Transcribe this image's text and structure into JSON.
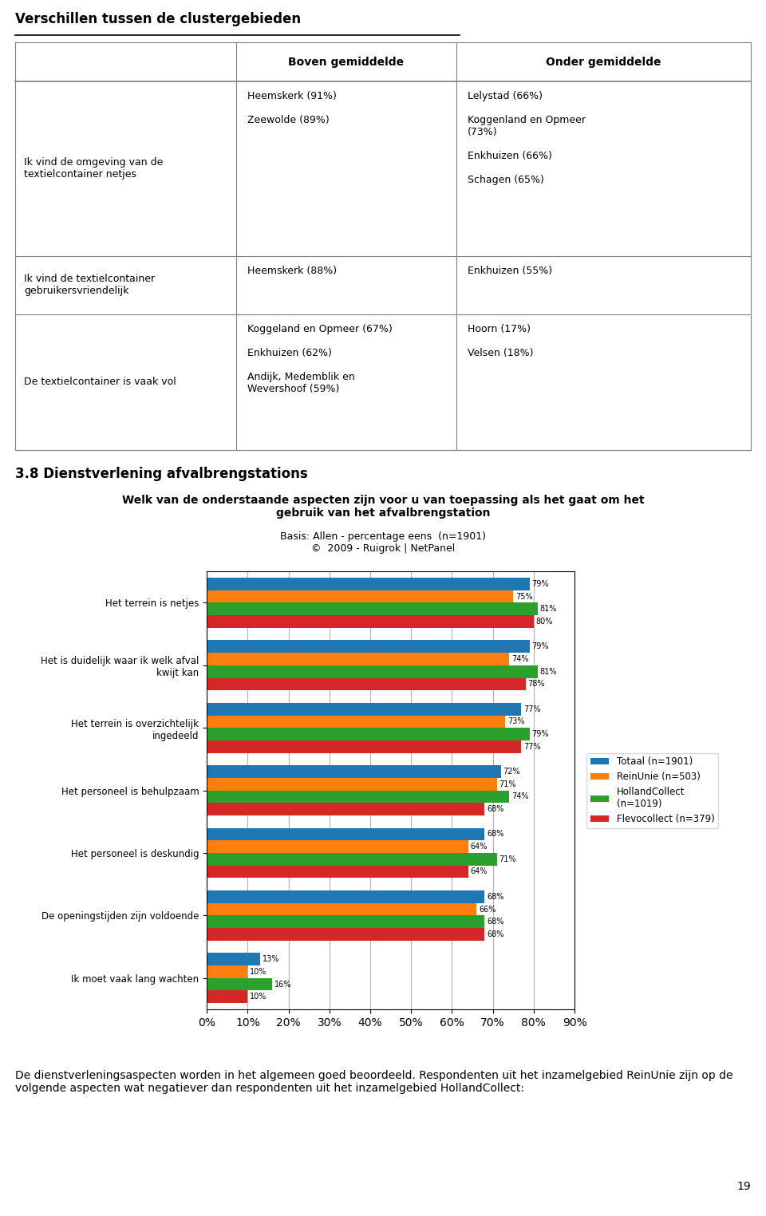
{
  "page_title": "Verschillen tussen de clustergebieden",
  "table": {
    "header": [
      "Boven gemiddelde",
      "Onder gemiddelde"
    ],
    "rows": [
      [
        "Ik vind de omgeving van de\ntextielcontainer netjes",
        "Heemskerk (91%)\n\nZeewolde (89%)",
        "Lelystad (66%)\n\nKoggenland en Opmeer\n(73%)\n\nEnkhuizen (66%)\n\nSchagen (65%)"
      ],
      [
        "Ik vind de textielcontainer\ngebruikersvriendelijk",
        "Heemskerk (88%)",
        "Enkhuizen (55%)"
      ],
      [
        "De textielcontainer is vaak vol",
        "Koggeland en Opmeer (67%)\n\nEnkhuizen (62%)\n\nAndijk, Medemblik en\nWevershoof (59%)",
        "Hoorn (17%)\n\nVelsen (18%)"
      ]
    ]
  },
  "section_title": "3.8 Dienstverlening afvalbrengstations",
  "chart_data": {
    "type": "bar",
    "orientation": "horizontal",
    "title": "Welk van de onderstaande aspecten zijn voor u van toepassing als het gaat om het\ngebruik van het afvalbrengstation",
    "subtitle": "Basis: Allen - percentage eens  (n=1901)\n©  2009 - Ruigrok | NetPanel",
    "categories": [
      "Het terrein is netjes",
      "Het is duidelijk waar ik welk afval\nkwijt kan",
      "Het terrein is overzichtelijk\ningedeeld",
      "Het personeel is behulpzaam",
      "Het personeel is deskundig",
      "De openingstijden zijn voldoende",
      "Ik moet vaak lang wachten"
    ],
    "series": [
      {
        "name": "Totaal (n=1901)",
        "values": [
          79,
          79,
          77,
          72,
          68,
          68,
          13
        ],
        "value_labels": [
          "79%",
          "79%",
          "77%",
          "72%",
          "68%",
          "68%",
          "13%"
        ]
      },
      {
        "name": "ReinUnie (n=503)",
        "values": [
          75,
          74,
          73,
          71,
          64,
          66,
          10
        ],
        "value_labels": [
          "75%",
          "74%",
          "73%",
          "71%",
          "64%",
          "66%",
          "10%"
        ]
      },
      {
        "name": "HollandCollect\n(n=1019)",
        "values": [
          81,
          81,
          79,
          74,
          71,
          68,
          16
        ],
        "value_labels": [
          "81%",
          "81%",
          "79%",
          "74%",
          "71%",
          "68%",
          "16%"
        ]
      },
      {
        "name": "Flevocollect (n=379)",
        "values": [
          80,
          78,
          77,
          68,
          64,
          68,
          10
        ],
        "value_labels": [
          "80%",
          "78%",
          "77%",
          "68%",
          "64%",
          "68%",
          "10%"
        ]
      }
    ],
    "xlim": [
      0,
      90
    ],
    "xticks": [
      {
        "value": 0,
        "label": "0%"
      },
      {
        "value": 10,
        "label": "10%"
      },
      {
        "value": 20,
        "label": "20%"
      },
      {
        "value": 30,
        "label": "30%"
      },
      {
        "value": 40,
        "label": "40%"
      },
      {
        "value": 50,
        "label": "50%"
      },
      {
        "value": 60,
        "label": "60%"
      },
      {
        "value": 70,
        "label": "70%"
      },
      {
        "value": 80,
        "label": "80%"
      },
      {
        "value": 90,
        "label": "90%"
      }
    ],
    "grid": true,
    "data_labels": true,
    "legend": "center left"
  },
  "footer_text": "De dienstverleningsaspecten worden in het algemeen goed beoordeeld. Respondenten uit het inzamelgebied ReinUnie zijn op de volgende aspecten wat negatiever dan respondenten uit het inzamelgebied HollandCollect:",
  "page_number": "19"
}
